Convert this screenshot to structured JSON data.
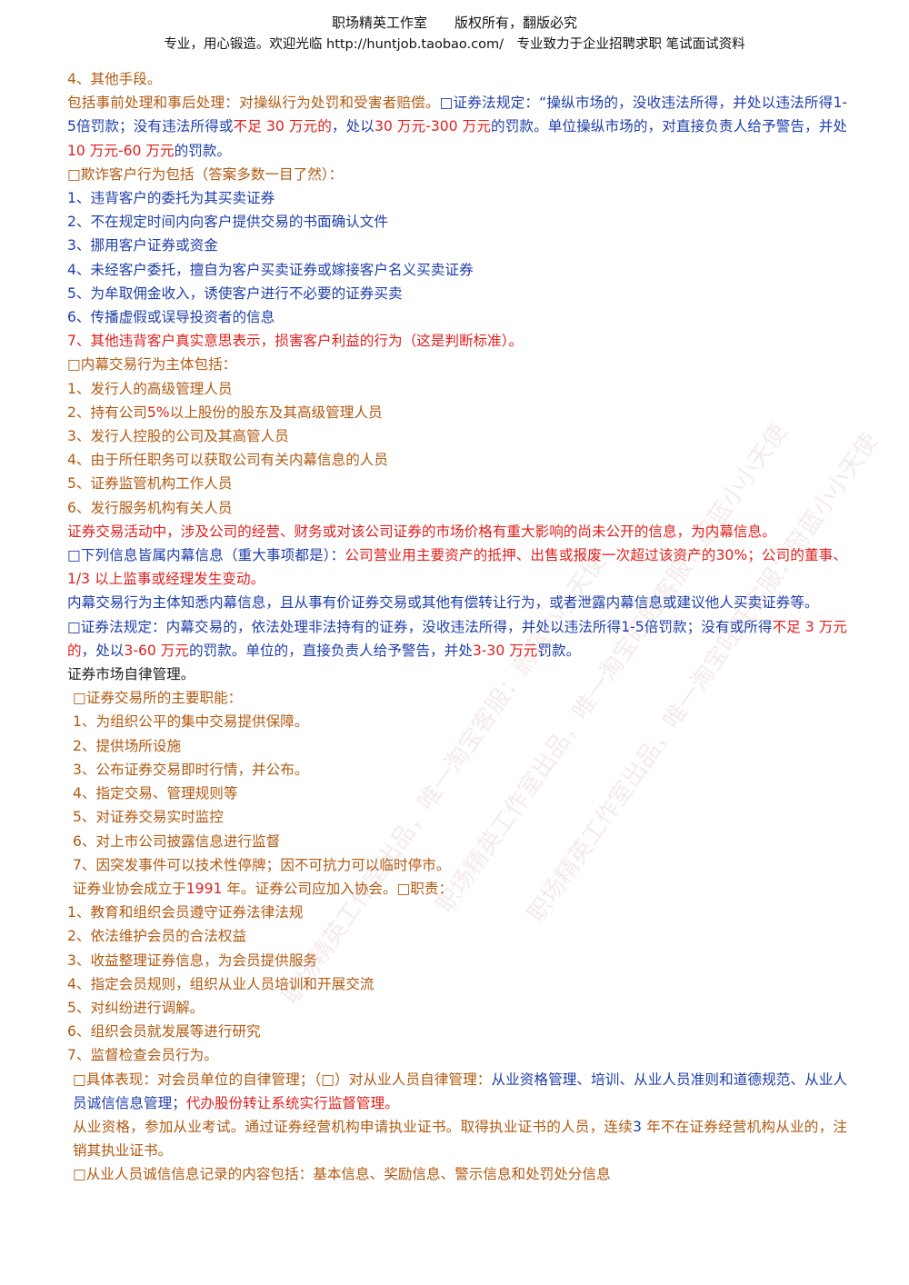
{
  "header": {
    "line1": "职场精英工作室　　版权所有，翻版必究",
    "line2": "专业，用心锻造。欢迎光临 http://huntjob.taobao.com/　专业致力于企业招聘求职 笔试面试资料"
  },
  "watermarks": [
    "职场精英工作室出品，唯一淘宝客服：蔚蓝小小天使",
    "职场精英工作室出品，唯一淘宝旺旺客服：蔚蓝小小天使",
    "职场精英工作室出品，唯一淘宝旺旺客服：蔚蓝小小天使"
  ],
  "body": {
    "l01": "4、其他手段。",
    "l02_a": "包括事前处理和事后处理：对操纵行为处罚和受害者赔偿。",
    "l02_b": "□证券法规定：“操纵市场的，没收违法所得，并处以违法所得",
    "l02_c": "1-5",
    "l02_d": "倍罚款；没有违法所得或",
    "l02_e": "不足 30 万元的",
    "l02_f": "，处以",
    "l02_g": "30 万元-300 万元",
    "l02_h": "的罚款。单位操纵市场的，对直接负责人给予警告，并处",
    "l02_i": "10 万元-60 万元",
    "l02_j": "的罚款。",
    "l03": "□欺诈客户行为包括（答案多数一目了然）：",
    "fraud": [
      "1、违背客户的委托为其买卖证券",
      "2、不在规定时间内向客户提供交易的书面确认文件",
      "3、挪用客户证券或资金",
      "4、未经客户委托，擅自为客户买卖证券或嫁接客户名义买卖证券",
      "5、为牟取佣金收入，诱使客户进行不必要的证券买卖",
      "6、传播虚假或误导投资者的信息",
      "7、其他违背客户真实意思表示，损害客户利益的行为（这是判断标准）。"
    ],
    "l04": "□内幕交易行为主体包括：",
    "insider": [
      "1、发行人的高级管理人员",
      "2、持有公司",
      "5%",
      "以上股份的股东及其高级管理人员",
      "3、发行人控股的公司及其高管人员",
      "4、由于所任职务可以获取公司有关内幕信息的人员",
      "5、证券监管机构工作人员",
      "6、发行服务机构有关人员"
    ],
    "l05": "证券交易活动中，涉及公司的经营、财务或对该公司证券的市场价格有重大影响的尚未公开的信息，为内幕信息。",
    "l06_a": "□下列信息皆属内幕信息（重大事项都是）：",
    "l06_b": "公司营业用主要资产的抵押、出售或报废一次超过该资产的",
    "l06_c": "30%",
    "l06_d": "；公司的董事、",
    "l06_e": "1/3",
    "l06_f": " 以上监事或经理发生变动。",
    "l07": "内幕交易行为主体知悉内幕信息，且从事有价证券交易或其他有偿转让行为，或者泄露内幕信息或建议他人买卖证券等。",
    "l08_a": "□证券法规定：内幕交易的，依法处理非法持有的证券，没收违法所得，并处以违法所得",
    "l08_b": "1-5",
    "l08_c": "倍罚款；没有或所得",
    "l08_d": "不足 3 万元的",
    "l08_e": "，处以",
    "l08_f": "3-60 万元",
    "l08_g": "的罚款。单位的，直接负责人给予警告，并处",
    "l08_h": "3-30 万元",
    "l08_i": "罚款。",
    "l09": "证券市场自律管理。",
    "l10": "□证券交易所的主要职能：",
    "exchange": [
      "1、为组织公平的集中交易提供保障。",
      "2、提供场所设施",
      "3、公布证券交易即时行情，并公布。",
      "4、指定交易、管理规则等",
      "5、对证券交易实时监控",
      "6、对上市公司披露信息进行监督",
      "7、因突发事件可以技术性停牌；因不可抗力可以临时停市。"
    ],
    "l11_a": "证券业协会成立于",
    "l11_b": "1991",
    "l11_c": " 年。证券公司应加入协会。□职责：",
    "assoc": [
      "1、教育和组织会员遵守证券法律法规",
      "2、依法维护会员的合法权益",
      "3、收益整理证券信息，为会员提供服务",
      "4、指定会员规则，组织从业人员培训和开展交流",
      "5、对纠纷进行调解。",
      "6、组织会员就发展等进行研究",
      "7、监督检查会员行为。"
    ],
    "l12_a": "□具体表现：对会员单位的自律管理；（□）对从业人员自律管理：",
    "l12_b": "从业资格管理、培训、从业人员准则和道德规范、从业人员诚信信息管理；",
    "l12_c": "代办股份转让系统实行监督管理。",
    "l13_a": "从业资格，参加从业考试。通过证券经营机构申请执业证书。取得执业证书的人员，连续",
    "l13_b": "3",
    "l13_c": " 年不在证券经营机构从业的，注销其执业证书。",
    "l14": "□从业人员诚信信息记录的内容包括：基本信息、奖励信息、警示信息和处罚处分信息"
  }
}
